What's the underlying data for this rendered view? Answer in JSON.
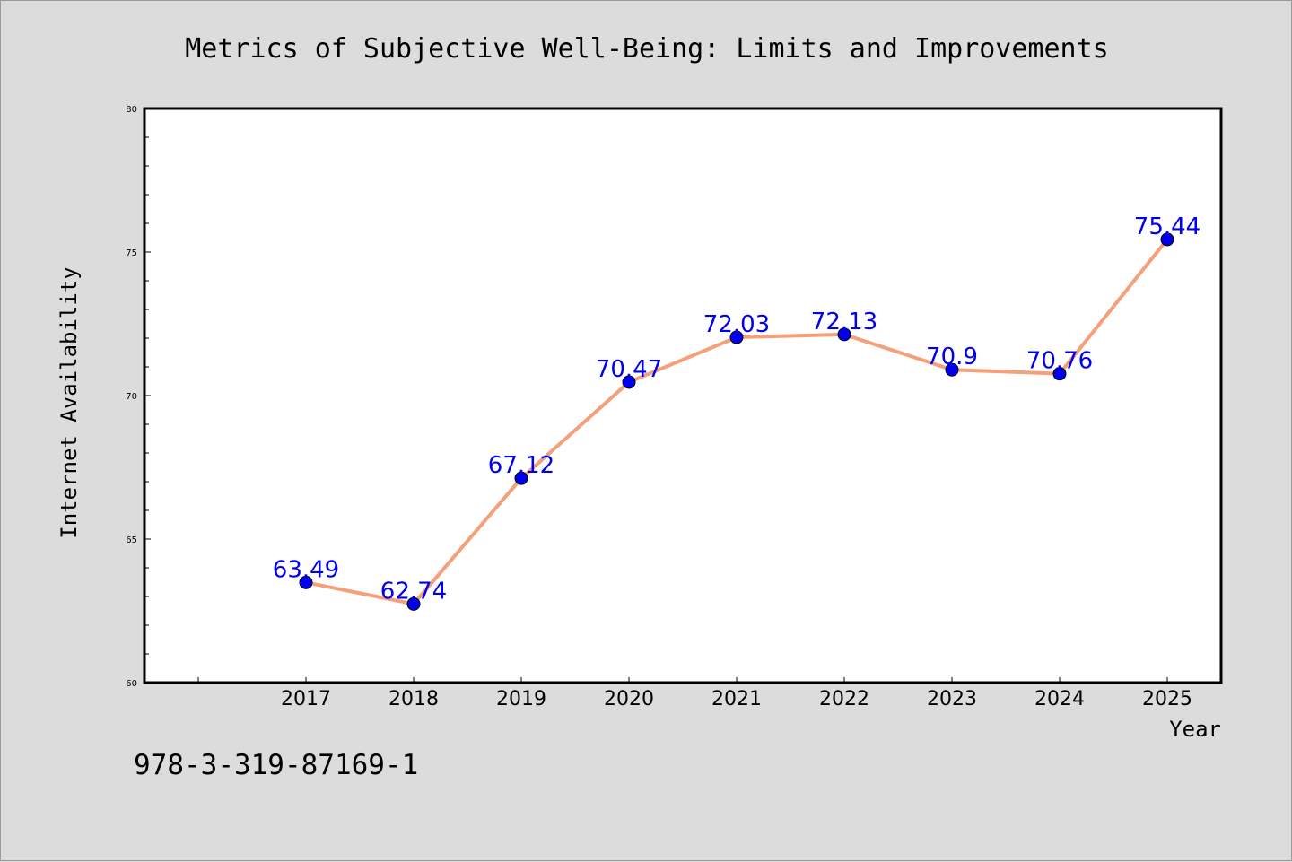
{
  "figure": {
    "background": "#dcdcdc",
    "footer_text": "978-3-319-87169-1"
  },
  "chart_data": {
    "type": "line",
    "title": "Metrics of Subjective Well-Being: Limits and Improvements",
    "xlabel": "Year",
    "ylabel": "Internet Availability",
    "categories": [
      "2017",
      "2018",
      "2019",
      "2020",
      "2021",
      "2022",
      "2023",
      "2024",
      "2025"
    ],
    "series": [
      {
        "values": [
          63.49,
          62.74,
          67.12,
          70.47,
          72.03,
          72.13,
          70.9,
          70.76,
          75.44
        ],
        "labels": [
          "63.49",
          "62.74",
          "67.12",
          "70.47",
          "72.03",
          "72.13",
          "70.9",
          "70.76",
          "75.44"
        ],
        "line_color": "#f4a07a",
        "marker_color": "#0000ee",
        "label_color": "#0000ee"
      }
    ],
    "ylim": [
      60,
      80
    ],
    "y_ticks": [
      "60",
      "65",
      "70",
      "75",
      "80"
    ],
    "y_tick_values": [
      60,
      65,
      70,
      75,
      80
    ],
    "y_minor_step": 1,
    "x_first_tick_offset": -1,
    "grid": false,
    "legend": "none",
    "plot_background": "#ffffff"
  }
}
